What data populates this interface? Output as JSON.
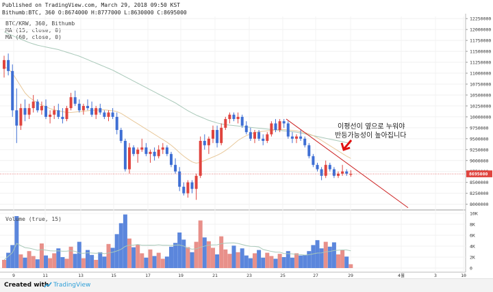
{
  "header": {
    "published": "Published on TradingView.com, March 29, 2018 09:50 KST",
    "ohlc": "Bithumb:BTC, 360  O:8674000  H:8777000  L:8630000  C:8695000"
  },
  "legend": {
    "symbol": "BTC/KRW, 360, Bithumb",
    "ma15": "MA (15, close, 0)",
    "ma60": "MA (60, close, 0)",
    "volume": "Volume (true, 15)"
  },
  "annotation": {
    "line1": "이평선이 옆으로 누워야",
    "line2": "반등가능성이 높아집니다"
  },
  "last_price_label": "8695000",
  "footer": {
    "created": "Created with",
    "brand": "TradingView"
  },
  "colors": {
    "up": "#e0443e",
    "down": "#3f6fd4",
    "ma15": "#e8c89a",
    "ma60": "#a8c8b8",
    "volume_ma": "#a8c8b8",
    "trendline": "#cc1f1f",
    "arrow": "#e01010",
    "price_line": "#e05050",
    "vol_up": "#e8908a",
    "vol_down": "#5b86dc"
  },
  "chart_data": {
    "type": "candlestick",
    "price_axis_ticks": [
      8000000,
      8250000,
      8500000,
      8750000,
      9000000,
      9250000,
      9500000,
      9750000,
      10000000,
      10250000,
      10500000,
      10750000,
      11000000,
      11250000,
      11500000,
      11750000,
      12000000,
      12250000
    ],
    "price_range": [
      7900000,
      12300000
    ],
    "volume_axis_ticks": [
      "0",
      "2K",
      "4K",
      "6K",
      "8K",
      "10K"
    ],
    "volume_range": [
      0,
      10000
    ],
    "x_ticks": [
      "9",
      "11",
      "13",
      "15",
      "17",
      "19",
      "21",
      "23",
      "25",
      "27",
      "29",
      "4월",
      "3",
      "10"
    ],
    "candles": [
      {
        "o": 11100000,
        "h": 11400000,
        "l": 10900000,
        "c": 11300000
      },
      {
        "o": 11300000,
        "h": 11450000,
        "l": 10950000,
        "c": 11050000
      },
      {
        "o": 11050000,
        "h": 11200000,
        "l": 10000000,
        "c": 10150000
      },
      {
        "o": 10150000,
        "h": 10650000,
        "l": 9400000,
        "c": 9800000
      },
      {
        "o": 9800000,
        "h": 10300000,
        "l": 9700000,
        "c": 10200000
      },
      {
        "o": 10200000,
        "h": 10400000,
        "l": 9900000,
        "c": 10050000
      },
      {
        "o": 10050000,
        "h": 10300000,
        "l": 9950000,
        "c": 10200000
      },
      {
        "o": 10200000,
        "h": 10500000,
        "l": 10100000,
        "c": 10350000
      },
      {
        "o": 10350000,
        "h": 10400000,
        "l": 10100000,
        "c": 10150000
      },
      {
        "o": 10150000,
        "h": 10350000,
        "l": 10050000,
        "c": 10250000
      },
      {
        "o": 10250000,
        "h": 10400000,
        "l": 9950000,
        "c": 10000000
      },
      {
        "o": 10000000,
        "h": 10150000,
        "l": 9850000,
        "c": 10050000
      },
      {
        "o": 10050000,
        "h": 10250000,
        "l": 9950000,
        "c": 10150000
      },
      {
        "o": 10150000,
        "h": 10300000,
        "l": 9950000,
        "c": 10000000
      },
      {
        "o": 10000000,
        "h": 10200000,
        "l": 9850000,
        "c": 9950000
      },
      {
        "o": 9950000,
        "h": 10250000,
        "l": 9900000,
        "c": 10200000
      },
      {
        "o": 10200000,
        "h": 10550000,
        "l": 10150000,
        "c": 10450000
      },
      {
        "o": 10450000,
        "h": 10600000,
        "l": 10250000,
        "c": 10300000
      },
      {
        "o": 10300000,
        "h": 10400000,
        "l": 10100000,
        "c": 10150000
      },
      {
        "o": 10150000,
        "h": 10300000,
        "l": 10050000,
        "c": 10250000
      },
      {
        "o": 10250000,
        "h": 10400000,
        "l": 10150000,
        "c": 10200000
      },
      {
        "o": 10200000,
        "h": 10350000,
        "l": 10000000,
        "c": 10050000
      },
      {
        "o": 10050000,
        "h": 10250000,
        "l": 9950000,
        "c": 10200000
      },
      {
        "o": 10200000,
        "h": 10300000,
        "l": 10050000,
        "c": 10100000
      },
      {
        "o": 10100000,
        "h": 10150000,
        "l": 9950000,
        "c": 10000000
      },
      {
        "o": 10000000,
        "h": 10150000,
        "l": 9900000,
        "c": 10100000
      },
      {
        "o": 10100000,
        "h": 10200000,
        "l": 9950000,
        "c": 10000000
      },
      {
        "o": 10000000,
        "h": 10100000,
        "l": 9600000,
        "c": 9700000
      },
      {
        "o": 9700000,
        "h": 9750000,
        "l": 9400000,
        "c": 9450000
      },
      {
        "o": 9450000,
        "h": 9500000,
        "l": 8750000,
        "c": 8800000
      },
      {
        "o": 8800000,
        "h": 9400000,
        "l": 8700000,
        "c": 9300000
      },
      {
        "o": 9300000,
        "h": 9350000,
        "l": 9100000,
        "c": 9150000
      },
      {
        "o": 9150000,
        "h": 9300000,
        "l": 8950000,
        "c": 9250000
      },
      {
        "o": 9250000,
        "h": 9500000,
        "l": 9200000,
        "c": 9300000
      },
      {
        "o": 9300000,
        "h": 9400000,
        "l": 9100000,
        "c": 9150000
      },
      {
        "o": 9150000,
        "h": 9250000,
        "l": 8950000,
        "c": 9200000
      },
      {
        "o": 9200000,
        "h": 9300000,
        "l": 9000000,
        "c": 9100000
      },
      {
        "o": 9100000,
        "h": 9350000,
        "l": 9050000,
        "c": 9250000
      },
      {
        "o": 9250000,
        "h": 9400000,
        "l": 9150000,
        "c": 9300000
      },
      {
        "o": 9300000,
        "h": 9350000,
        "l": 9100000,
        "c": 9150000
      },
      {
        "o": 9150000,
        "h": 9200000,
        "l": 8850000,
        "c": 8900000
      },
      {
        "o": 8900000,
        "h": 9050000,
        "l": 8700000,
        "c": 8750000
      },
      {
        "o": 8750000,
        "h": 8850000,
        "l": 8300000,
        "c": 8400000
      },
      {
        "o": 8400000,
        "h": 8500000,
        "l": 8200000,
        "c": 8250000
      },
      {
        "o": 8250000,
        "h": 8550000,
        "l": 8150000,
        "c": 8500000
      },
      {
        "o": 8500000,
        "h": 8550000,
        "l": 8250000,
        "c": 8350000
      },
      {
        "o": 8350000,
        "h": 8700000,
        "l": 8100000,
        "c": 8650000
      },
      {
        "o": 8650000,
        "h": 9550000,
        "l": 8600000,
        "c": 9450000
      },
      {
        "o": 9450000,
        "h": 9600000,
        "l": 9250000,
        "c": 9350000
      },
      {
        "o": 9350000,
        "h": 9550000,
        "l": 9150000,
        "c": 9500000
      },
      {
        "o": 9500000,
        "h": 9800000,
        "l": 9400000,
        "c": 9700000
      },
      {
        "o": 9700000,
        "h": 9800000,
        "l": 9300000,
        "c": 9400000
      },
      {
        "o": 9400000,
        "h": 9850000,
        "l": 9350000,
        "c": 9750000
      },
      {
        "o": 9750000,
        "h": 10000000,
        "l": 9700000,
        "c": 9950000
      },
      {
        "o": 9950000,
        "h": 10100000,
        "l": 9850000,
        "c": 10050000
      },
      {
        "o": 10050000,
        "h": 10100000,
        "l": 9900000,
        "c": 9950000
      },
      {
        "o": 9950000,
        "h": 10100000,
        "l": 9850000,
        "c": 10000000
      },
      {
        "o": 10000000,
        "h": 10050000,
        "l": 9750000,
        "c": 9800000
      },
      {
        "o": 9800000,
        "h": 9900000,
        "l": 9600000,
        "c": 9650000
      },
      {
        "o": 9650000,
        "h": 9750000,
        "l": 9450000,
        "c": 9500000
      },
      {
        "o": 9500000,
        "h": 9700000,
        "l": 9400000,
        "c": 9650000
      },
      {
        "o": 9650000,
        "h": 9700000,
        "l": 9450000,
        "c": 9500000
      },
      {
        "o": 9500000,
        "h": 9600000,
        "l": 9350000,
        "c": 9450000
      },
      {
        "o": 9450000,
        "h": 9650000,
        "l": 9400000,
        "c": 9600000
      },
      {
        "o": 9600000,
        "h": 9900000,
        "l": 9550000,
        "c": 9850000
      },
      {
        "o": 9850000,
        "h": 9950000,
        "l": 9650000,
        "c": 9700000
      },
      {
        "o": 9700000,
        "h": 9950000,
        "l": 9650000,
        "c": 9900000
      },
      {
        "o": 9900000,
        "h": 9950000,
        "l": 9750000,
        "c": 9850000
      },
      {
        "o": 9850000,
        "h": 9900000,
        "l": 9500000,
        "c": 9550000
      },
      {
        "o": 9550000,
        "h": 9650000,
        "l": 9400000,
        "c": 9500000
      },
      {
        "o": 9500000,
        "h": 9600000,
        "l": 9400000,
        "c": 9550000
      },
      {
        "o": 9550000,
        "h": 9700000,
        "l": 9450000,
        "c": 9500000
      },
      {
        "o": 9500000,
        "h": 9550000,
        "l": 9300000,
        "c": 9350000
      },
      {
        "o": 9350000,
        "h": 9400000,
        "l": 9050000,
        "c": 9100000
      },
      {
        "o": 9100000,
        "h": 9150000,
        "l": 8850000,
        "c": 8900000
      },
      {
        "o": 8900000,
        "h": 8950000,
        "l": 8750000,
        "c": 8800000
      },
      {
        "o": 8800000,
        "h": 8850000,
        "l": 8550000,
        "c": 8650000
      },
      {
        "o": 8650000,
        "h": 9000000,
        "l": 8600000,
        "c": 8900000
      },
      {
        "o": 8900000,
        "h": 8950000,
        "l": 8750000,
        "c": 8800000
      },
      {
        "o": 8800000,
        "h": 8850000,
        "l": 8600000,
        "c": 8650000
      },
      {
        "o": 8650000,
        "h": 8750000,
        "l": 8600000,
        "c": 8700000
      },
      {
        "o": 8700000,
        "h": 8900000,
        "l": 8650000,
        "c": 8750000
      },
      {
        "o": 8750000,
        "h": 8800000,
        "l": 8650000,
        "c": 8700000
      },
      {
        "o": 8674000,
        "h": 8777000,
        "l": 8630000,
        "c": 8695000
      }
    ],
    "ma15": [
      11150000,
      11100000,
      11000000,
      10850000,
      10700000,
      10550000,
      10450000,
      10380000,
      10320000,
      10270000,
      10230000,
      10190000,
      10160000,
      10140000,
      10120000,
      10100000,
      10100000,
      10110000,
      10120000,
      10130000,
      10140000,
      10150000,
      10150000,
      10160000,
      10160000,
      10150000,
      10140000,
      10120000,
      10080000,
      10020000,
      9960000,
      9900000,
      9840000,
      9780000,
      9720000,
      9660000,
      9600000,
      9540000,
      9480000,
      9420000,
      9350000,
      9270000,
      9180000,
      9100000,
      9030000,
      8970000,
      8940000,
      8960000,
      9000000,
      9040000,
      9080000,
      9120000,
      9170000,
      9230000,
      9300000,
      9380000,
      9460000,
      9520000,
      9570000,
      9610000,
      9640000,
      9660000,
      9670000,
      9680000,
      9690000,
      9700000,
      9710000,
      9710000,
      9700000,
      9690000,
      9680000,
      9660000,
      9640000,
      9610000,
      9570000,
      9520000,
      9460000,
      9400000,
      9340000,
      9280000,
      9220000,
      9160000,
      9100000,
      9050000
    ],
    "ma60": [
      11950000,
      11900000,
      11860000,
      11820000,
      11780000,
      11740000,
      11700000,
      11670000,
      11640000,
      11620000,
      11600000,
      11580000,
      11560000,
      11540000,
      11510000,
      11480000,
      11450000,
      11420000,
      11390000,
      11350000,
      11310000,
      11270000,
      11230000,
      11190000,
      11150000,
      11110000,
      11070000,
      11020000,
      10970000,
      10920000,
      10870000,
      10820000,
      10770000,
      10720000,
      10670000,
      10620000,
      10570000,
      10520000,
      10470000,
      10420000,
      10370000,
      10320000,
      10260000,
      10200000,
      10140000,
      10090000,
      10040000,
      10000000,
      9960000,
      9920000,
      9890000,
      9860000,
      9840000,
      9820000,
      9810000,
      9800000,
      9790000,
      9780000,
      9770000,
      9760000,
      9750000,
      9740000,
      9730000,
      9720000,
      9710000,
      9700000,
      9690000,
      9680000,
      9670000,
      9660000,
      9650000,
      9630000,
      9610000,
      9590000,
      9570000,
      9550000,
      9530000,
      9510000,
      9490000,
      9470000,
      9450000,
      9430000,
      9410000,
      9390000
    ],
    "volumes": [
      1500,
      2800,
      4200,
      9500,
      2500,
      1900,
      3100,
      2200,
      1600,
      4500,
      2300,
      1800,
      2700,
      3600,
      2000,
      1700,
      3900,
      2600,
      4800,
      1800,
      3300,
      2400,
      1500,
      2900,
      2100,
      4400,
      3700,
      6200,
      8200,
      9800,
      5400,
      3800,
      4300,
      2700,
      1900,
      3400,
      2200,
      2800,
      1700,
      2100,
      3900,
      4600,
      6500,
      5200,
      3800,
      2900,
      4800,
      8700,
      5600,
      4900,
      3700,
      2500,
      5800,
      3400,
      2600,
      4100,
      2900,
      3600,
      2300,
      1800,
      2700,
      3300,
      1900,
      2800,
      2200,
      1700,
      2600,
      2000,
      3100,
      1900,
      2700,
      2300,
      2400,
      3100,
      4200,
      5100,
      3600,
      4800,
      3900,
      4700,
      2500,
      3300,
      2100,
      700
    ]
  }
}
